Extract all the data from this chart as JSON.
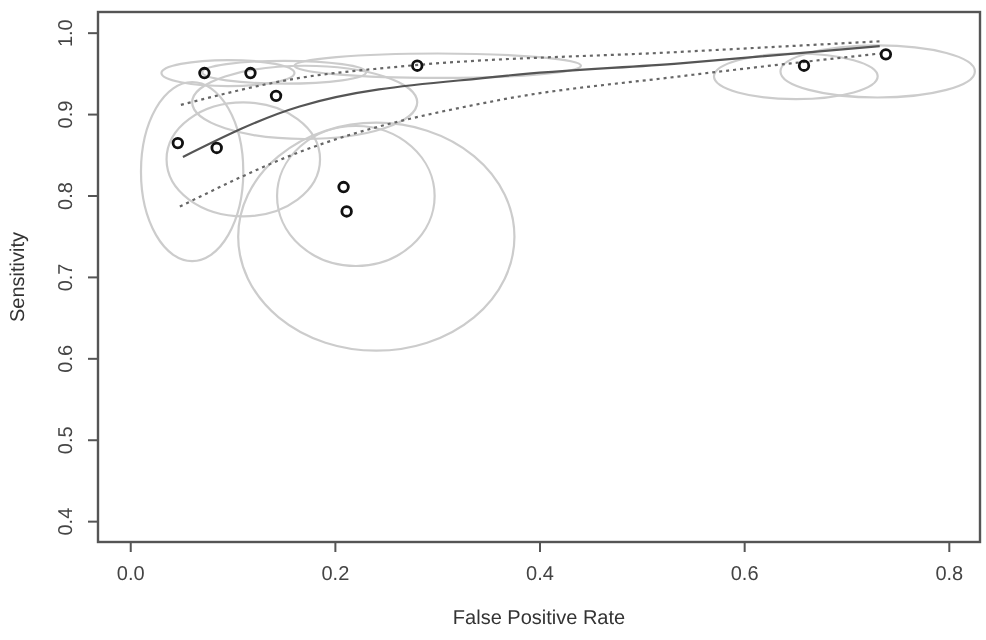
{
  "chart_data": {
    "type": "scatter",
    "xlabel": "False Positive Rate",
    "ylabel": "Sensitivity",
    "xlim": [
      -0.032,
      0.83
    ],
    "ylim": [
      0.375,
      1.026
    ],
    "xticks": [
      {
        "value": 0,
        "label": "0.0"
      },
      0.2,
      0.4,
      0.6,
      0.8
    ],
    "yticks": [
      0.4,
      0.5,
      0.6,
      0.7,
      0.8,
      0.9,
      {
        "value": 1,
        "label": "1.0"
      }
    ],
    "grid": false,
    "series": [
      {
        "type": "line",
        "color": "#555555",
        "x": [
          0.051,
          0.165,
          0.361,
          0.537,
          0.732
        ],
        "values": [
          0.848,
          0.91,
          0.947,
          0.963,
          0.984
        ]
      },
      {
        "type": "line",
        "color": "#666666",
        "line_style": "dotted",
        "x": [
          0.049,
          0.165,
          0.263,
          0.537,
          0.732
        ],
        "values": [
          0.912,
          0.945,
          0.959,
          0.977,
          0.99
        ]
      },
      {
        "type": "line",
        "color": "#666666",
        "line_style": "dotted",
        "x": [
          0.048,
          0.165,
          0.361,
          0.537,
          0.732
        ],
        "values": [
          0.787,
          0.854,
          0.918,
          0.947,
          0.975
        ]
      },
      {
        "color": "#111111",
        "marker": "circle",
        "x": [
          0.072,
          0.117,
          0.142,
          0.28,
          0.046,
          0.084,
          0.208,
          0.211,
          0.658,
          0.738
        ],
        "values": [
          0.951,
          0.951,
          0.923,
          0.96,
          0.865,
          0.859,
          0.811,
          0.781,
          0.96,
          0.974
        ]
      }
    ]
  }
}
